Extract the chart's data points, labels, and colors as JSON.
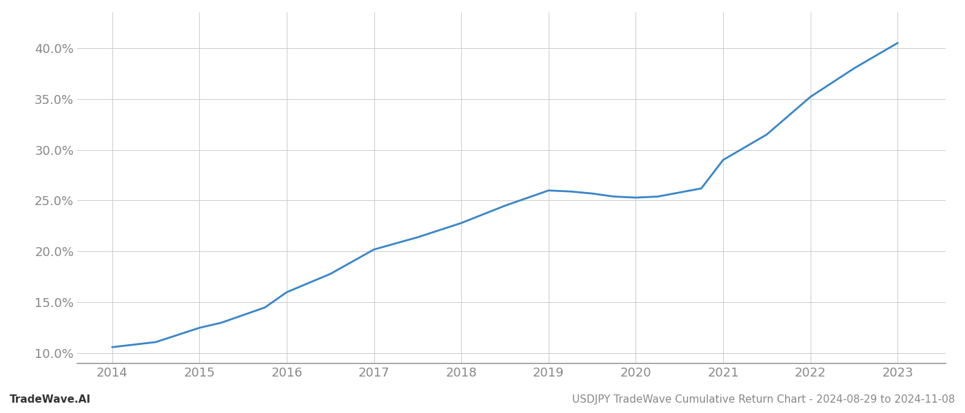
{
  "x_years": [
    2014,
    2014.5,
    2015,
    2015.25,
    2015.75,
    2016,
    2016.5,
    2017,
    2017.5,
    2018,
    2018.5,
    2019,
    2019.25,
    2019.5,
    2019.75,
    2020,
    2020.25,
    2020.75,
    2021,
    2021.5,
    2022,
    2022.5,
    2023
  ],
  "y_values": [
    10.6,
    11.1,
    12.5,
    13.0,
    14.5,
    16.0,
    17.8,
    20.2,
    21.4,
    22.8,
    24.5,
    26.0,
    25.9,
    25.7,
    25.4,
    25.3,
    25.4,
    26.2,
    29.0,
    31.5,
    35.2,
    38.0,
    40.5
  ],
  "line_color": "#3a86c8",
  "line_width": 2.0,
  "background_color": "#ffffff",
  "grid_color": "#cccccc",
  "footer_left": "TradeWave.AI",
  "footer_right": "USDJPY TradeWave Cumulative Return Chart - 2024-08-29 to 2024-11-08",
  "xlim": [
    2013.6,
    2023.55
  ],
  "ylim": [
    9.0,
    43.5
  ],
  "xtick_labels": [
    "2014",
    "2015",
    "2016",
    "2017",
    "2018",
    "2019",
    "2020",
    "2021",
    "2022",
    "2023"
  ],
  "xtick_positions": [
    2014,
    2015,
    2016,
    2017,
    2018,
    2019,
    2020,
    2021,
    2022,
    2023
  ],
  "ytick_values": [
    10.0,
    15.0,
    20.0,
    25.0,
    30.0,
    35.0,
    40.0
  ],
  "tick_label_color": "#888888",
  "tick_label_fontsize": 13,
  "footer_fontsize": 11,
  "spine_color": "#999999"
}
